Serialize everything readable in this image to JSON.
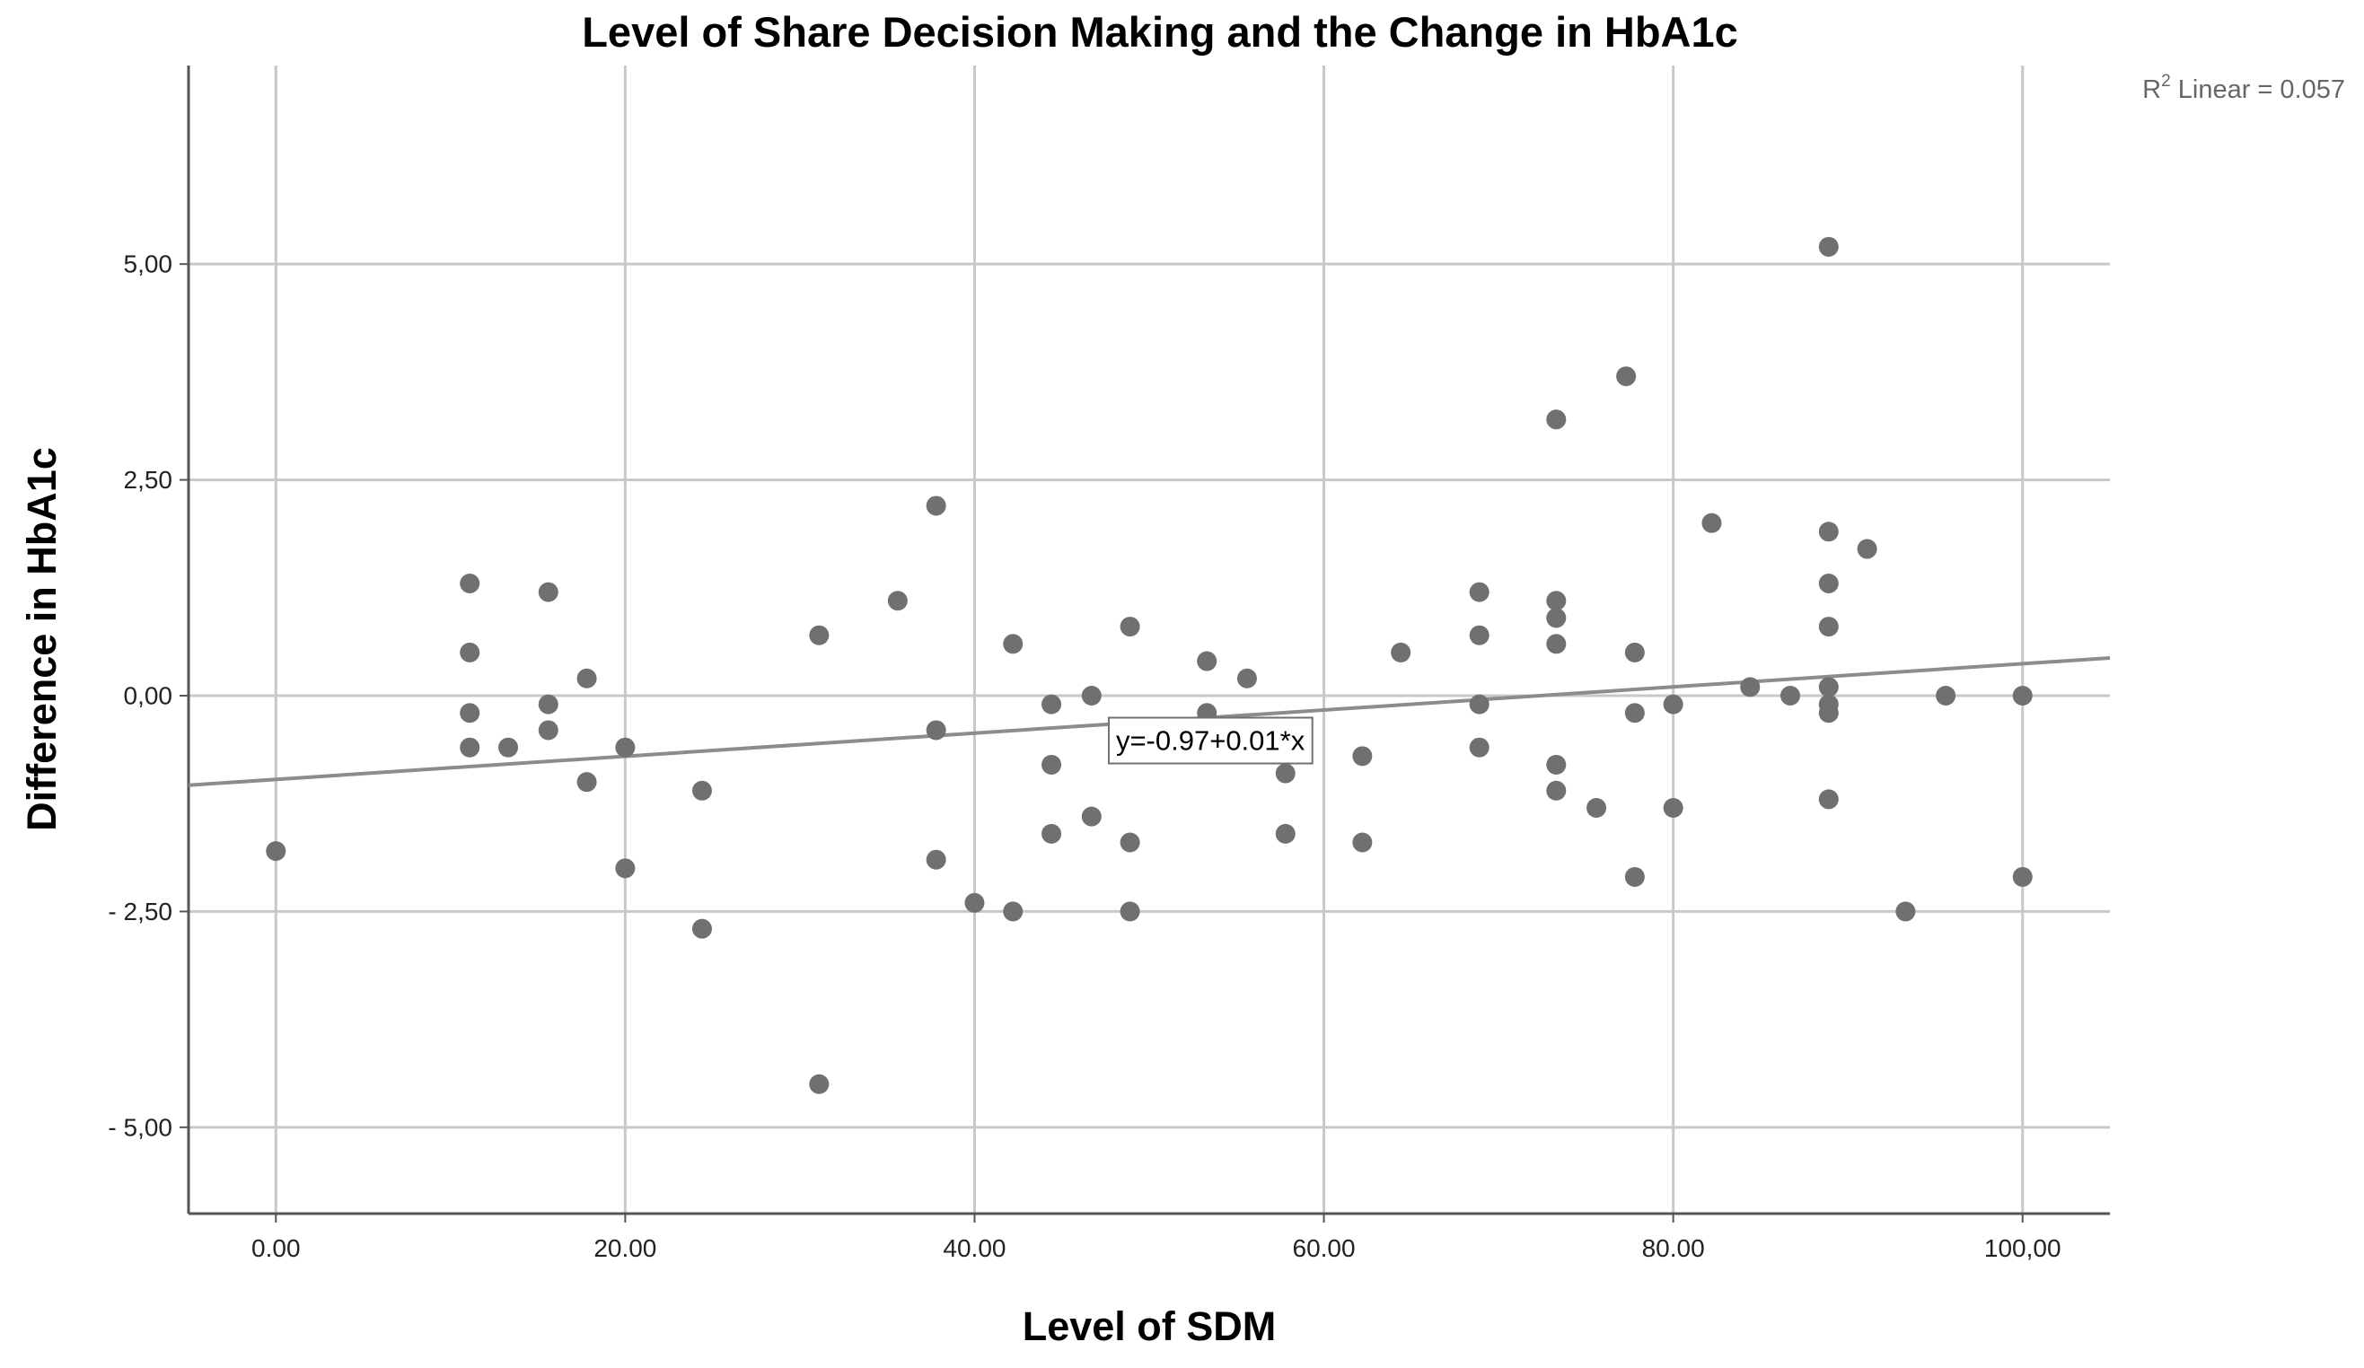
{
  "chart_data": {
    "type": "scatter",
    "title": "Level of Share Decision Making and the Change in HbA1c",
    "xlabel": "Level of SDM",
    "ylabel": "Difference in HbA1c",
    "xlim": [
      -5,
      105
    ],
    "ylim": [
      -6,
      7.3
    ],
    "x_ticks": [
      0,
      20,
      40,
      60,
      80,
      100
    ],
    "x_tick_labels": [
      "0.00",
      "20.00",
      "40.00",
      "60.00",
      "80.00",
      "100,00"
    ],
    "y_ticks": [
      5,
      2.5,
      0,
      -2.5,
      -5
    ],
    "y_tick_labels": [
      "5,00",
      "2,50",
      "0,00",
      "- 2,50",
      "- 5,00"
    ],
    "grid": true,
    "colors": {
      "point": "#707070",
      "fit_line": "#8c8c8c",
      "grid": "#c8c8c8",
      "axis": "#555555"
    },
    "fit_line": {
      "intercept": -0.97,
      "slope": 0.0134,
      "label": "y=-0.97+0.01*x",
      "label_at": [
        53.5,
        -0.52
      ]
    },
    "r2": {
      "prefix": "R",
      "sup": "2",
      "text": " Linear = 0.057"
    },
    "points": [
      [
        0,
        -1.8
      ],
      [
        11.1,
        1.3
      ],
      [
        11.1,
        0.5
      ],
      [
        11.1,
        -0.2
      ],
      [
        11.1,
        -0.6
      ],
      [
        13.3,
        -0.6
      ],
      [
        15.6,
        1.2
      ],
      [
        15.6,
        -0.1
      ],
      [
        15.6,
        -0.4
      ],
      [
        17.8,
        0.2
      ],
      [
        17.8,
        -1.0
      ],
      [
        20,
        -0.6
      ],
      [
        20,
        -2.0
      ],
      [
        24.4,
        -1.1
      ],
      [
        24.4,
        -2.7
      ],
      [
        31.1,
        0.7
      ],
      [
        31.1,
        -4.5
      ],
      [
        35.6,
        1.1
      ],
      [
        37.8,
        2.2
      ],
      [
        37.8,
        -0.4
      ],
      [
        37.8,
        -1.9
      ],
      [
        40,
        -2.4
      ],
      [
        42.2,
        0.6
      ],
      [
        42.2,
        -2.5
      ],
      [
        44.4,
        -0.1
      ],
      [
        44.4,
        -0.8
      ],
      [
        44.4,
        -1.6
      ],
      [
        46.7,
        0.0
      ],
      [
        46.7,
        -1.4
      ],
      [
        48.9,
        0.8
      ],
      [
        48.9,
        -1.7
      ],
      [
        48.9,
        -2.5
      ],
      [
        53.3,
        0.4
      ],
      [
        53.3,
        -0.2
      ],
      [
        55.6,
        0.2
      ],
      [
        57.8,
        -0.9
      ],
      [
        57.8,
        -1.6
      ],
      [
        62.2,
        -0.7
      ],
      [
        62.2,
        -1.7
      ],
      [
        64.4,
        0.5
      ],
      [
        68.9,
        1.2
      ],
      [
        68.9,
        0.7
      ],
      [
        68.9,
        -0.1
      ],
      [
        68.9,
        -0.6
      ],
      [
        73.3,
        3.2
      ],
      [
        73.3,
        1.1
      ],
      [
        73.3,
        0.9
      ],
      [
        73.3,
        0.6
      ],
      [
        73.3,
        -0.8
      ],
      [
        73.3,
        -1.1
      ],
      [
        75.6,
        -1.3
      ],
      [
        77.3,
        3.7
      ],
      [
        77.8,
        0.5
      ],
      [
        77.8,
        -0.2
      ],
      [
        77.8,
        -2.1
      ],
      [
        80,
        -0.1
      ],
      [
        80,
        -1.3
      ],
      [
        82.2,
        2.0
      ],
      [
        84.4,
        0.1
      ],
      [
        86.7,
        0.0
      ],
      [
        88.9,
        5.2
      ],
      [
        88.9,
        1.9
      ],
      [
        88.9,
        1.3
      ],
      [
        88.9,
        0.8
      ],
      [
        88.9,
        0.1
      ],
      [
        88.9,
        -0.1
      ],
      [
        88.9,
        -0.2
      ],
      [
        88.9,
        -1.2
      ],
      [
        91.1,
        1.7
      ],
      [
        93.3,
        -2.5
      ],
      [
        95.6,
        0.0
      ],
      [
        100,
        0.0
      ],
      [
        100,
        -2.1
      ]
    ]
  }
}
